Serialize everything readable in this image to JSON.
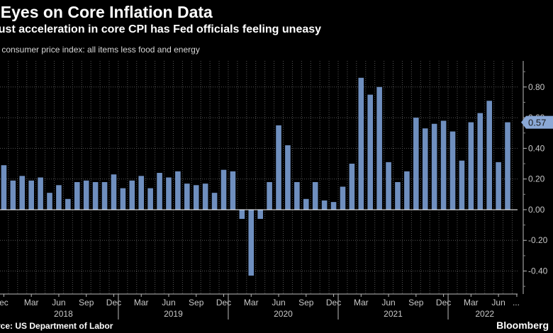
{
  "header": {
    "title": "l Eyes on Core Inflation Data",
    "subtitle": "gust acceleration in core CPI has Fed officials feeling uneasy"
  },
  "footer": {
    "source": "rce: US Department of Labor",
    "logo": "Bloomberg"
  },
  "colors": {
    "background": "#000000",
    "bar": "#6f8fbf",
    "callout_bg": "#8aa8d6",
    "grid": "#555555",
    "text": "#ffffff"
  },
  "chart_data": {
    "type": "bar",
    "title": "l Eyes on Core Inflation Data",
    "series_label": "S consumer price index: all items less food and energy",
    "xlabel": "",
    "ylabel": "",
    "ylim": [
      -0.55,
      0.97
    ],
    "yticks": [
      -0.4,
      -0.2,
      0.0,
      0.2,
      0.4,
      0.6,
      0.8
    ],
    "ytick_labels": [
      "-0.40",
      "-0.20",
      "0.00",
      "0.20",
      "0.40",
      "0.60",
      "0.80"
    ],
    "grid": true,
    "series": [
      {
        "name": "Core CPI MoM %",
        "values": [
          0.21,
          0.29,
          0.19,
          0.22,
          0.19,
          0.21,
          0.11,
          0.16,
          0.07,
          0.18,
          0.19,
          0.18,
          0.18,
          0.23,
          0.14,
          0.19,
          0.22,
          0.14,
          0.24,
          0.21,
          0.25,
          0.17,
          0.16,
          0.17,
          0.11,
          0.26,
          0.25,
          -0.06,
          -0.43,
          -0.06,
          0.18,
          0.55,
          0.42,
          0.18,
          0.07,
          0.18,
          0.06,
          0.05,
          0.15,
          0.3,
          0.86,
          0.75,
          0.8,
          0.31,
          0.18,
          0.25,
          0.6,
          0.53,
          0.56,
          0.58,
          0.51,
          0.32,
          0.57,
          0.63,
          0.71,
          0.31,
          0.57
        ]
      }
    ],
    "month_ticks": [
      {
        "index": 1,
        "label": "ec"
      },
      {
        "index": 4,
        "label": "Mar"
      },
      {
        "index": 7,
        "label": "Jun"
      },
      {
        "index": 10,
        "label": "Sep"
      },
      {
        "index": 13,
        "label": "Dec"
      },
      {
        "index": 16,
        "label": "Mar"
      },
      {
        "index": 19,
        "label": "Jun"
      },
      {
        "index": 22,
        "label": "Sep"
      },
      {
        "index": 25,
        "label": "Dec"
      },
      {
        "index": 28,
        "label": "Mar"
      },
      {
        "index": 31,
        "label": "Jun"
      },
      {
        "index": 34,
        "label": "Sep"
      },
      {
        "index": 37,
        "label": "Dec"
      },
      {
        "index": 40,
        "label": "Mar"
      },
      {
        "index": 43,
        "label": "Jun"
      },
      {
        "index": 46,
        "label": "Sep"
      },
      {
        "index": 49,
        "label": "Dec"
      },
      {
        "index": 52,
        "label": "Mar"
      },
      {
        "index": 55,
        "label": "Jun"
      },
      {
        "index": 57,
        "label": "..."
      }
    ],
    "years": [
      {
        "label": "2018",
        "start": 2,
        "end": 13
      },
      {
        "label": "2019",
        "start": 14,
        "end": 25
      },
      {
        "label": "2020",
        "start": 26,
        "end": 37
      },
      {
        "label": "2021",
        "start": 38,
        "end": 49
      },
      {
        "label": "2022",
        "start": 50,
        "end": 57
      }
    ],
    "callout": {
      "value": 0.57,
      "label": "0.57"
    }
  }
}
